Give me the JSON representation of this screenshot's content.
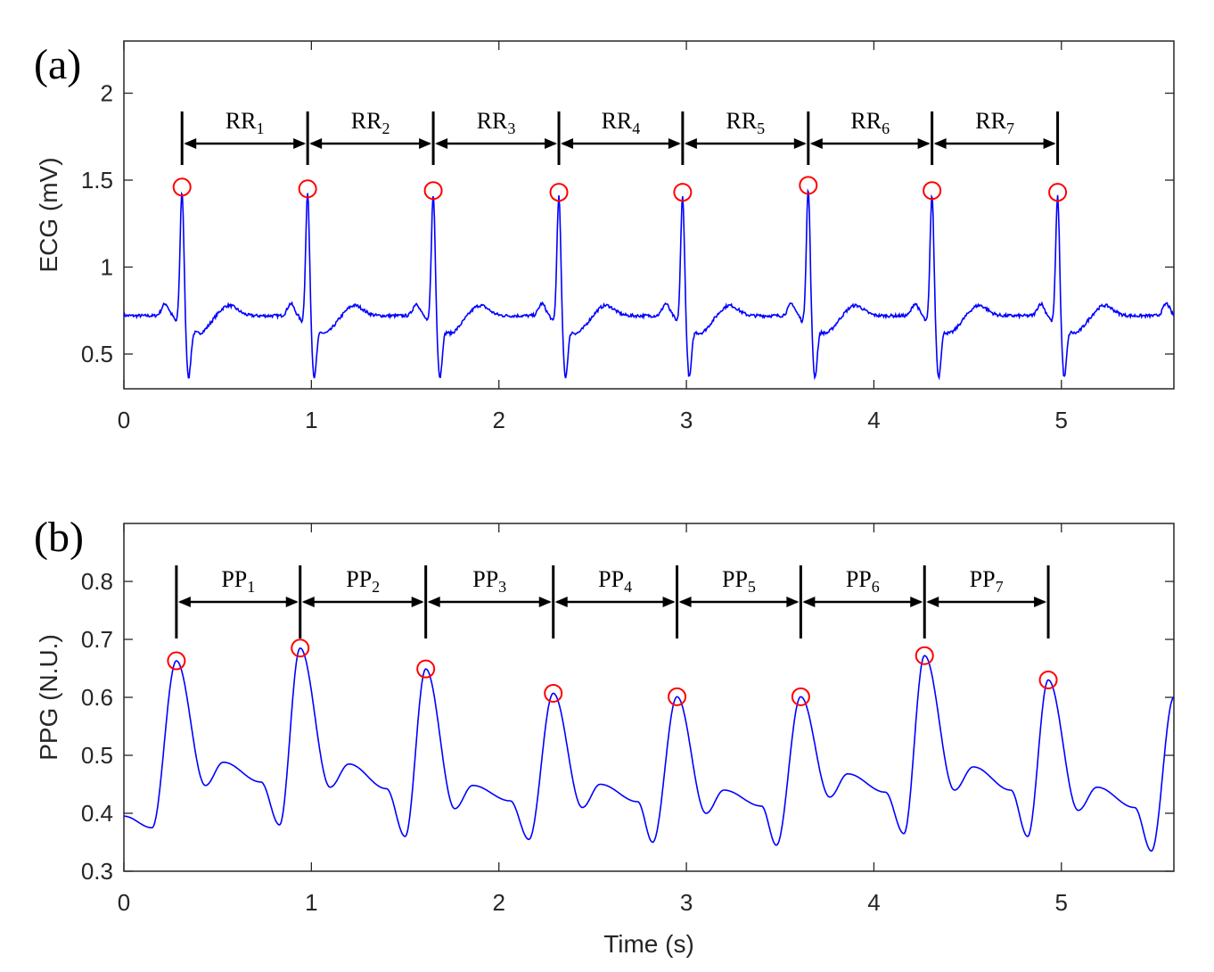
{
  "chart_data": [
    {
      "type": "line",
      "panel_label": "(a)",
      "ylabel": "ECG (mV)",
      "xlabel": "",
      "xlim": [
        0,
        5.6
      ],
      "ylim": [
        0.3,
        2.3
      ],
      "xticks": [
        "0",
        "1",
        "2",
        "3",
        "4",
        "5"
      ],
      "yticks": [
        "0.5",
        "1",
        "1.5",
        "2"
      ],
      "grid": false,
      "line_color": "#0000ff",
      "marker_color": "#ff0000",
      "baseline": 0.72,
      "peaks": [
        {
          "x": 0.31,
          "y": 1.46
        },
        {
          "x": 0.98,
          "y": 1.45
        },
        {
          "x": 1.65,
          "y": 1.44
        },
        {
          "x": 2.32,
          "y": 1.43
        },
        {
          "x": 2.98,
          "y": 1.43
        },
        {
          "x": 3.65,
          "y": 1.47
        },
        {
          "x": 4.31,
          "y": 1.44
        },
        {
          "x": 4.98,
          "y": 1.43
        }
      ],
      "intervals": [
        {
          "name": "RR",
          "sub": "1"
        },
        {
          "name": "RR",
          "sub": "2"
        },
        {
          "name": "RR",
          "sub": "3"
        },
        {
          "name": "RR",
          "sub": "4"
        },
        {
          "name": "RR",
          "sub": "5"
        },
        {
          "name": "RR",
          "sub": "6"
        },
        {
          "name": "RR",
          "sub": "7"
        }
      ]
    },
    {
      "type": "line",
      "panel_label": "(b)",
      "ylabel": "PPG (N.U.)",
      "xlabel": "Time (s)",
      "xlim": [
        0,
        5.6
      ],
      "ylim": [
        0.3,
        0.9
      ],
      "xticks": [
        "0",
        "1",
        "2",
        "3",
        "4",
        "5"
      ],
      "yticks": [
        "0.3",
        "0.4",
        "0.5",
        "0.6",
        "0.7",
        "0.8"
      ],
      "grid": false,
      "line_color": "#0000ff",
      "marker_color": "#ff0000",
      "peaks": [
        {
          "x": 0.28,
          "y": 0.663
        },
        {
          "x": 0.94,
          "y": 0.685
        },
        {
          "x": 1.61,
          "y": 0.649
        },
        {
          "x": 2.29,
          "y": 0.607
        },
        {
          "x": 2.95,
          "y": 0.601
        },
        {
          "x": 3.61,
          "y": 0.601
        },
        {
          "x": 4.27,
          "y": 0.672
        },
        {
          "x": 4.93,
          "y": 0.63
        }
      ],
      "troughs": [
        {
          "x": 0.15,
          "y": 0.375
        },
        {
          "x": 0.83,
          "y": 0.38
        },
        {
          "x": 1.5,
          "y": 0.36
        },
        {
          "x": 2.16,
          "y": 0.355
        },
        {
          "x": 2.82,
          "y": 0.35
        },
        {
          "x": 3.48,
          "y": 0.345
        },
        {
          "x": 4.16,
          "y": 0.365
        },
        {
          "x": 4.82,
          "y": 0.36
        },
        {
          "x": 5.48,
          "y": 0.335
        }
      ],
      "secondary_peaks": [
        {
          "x": 0.53,
          "y": 0.488
        },
        {
          "x": 1.2,
          "y": 0.485
        },
        {
          "x": 1.86,
          "y": 0.448
        },
        {
          "x": 2.54,
          "y": 0.45
        },
        {
          "x": 3.2,
          "y": 0.44
        },
        {
          "x": 3.86,
          "y": 0.468
        },
        {
          "x": 4.53,
          "y": 0.48
        },
        {
          "x": 5.19,
          "y": 0.445
        }
      ],
      "start": {
        "x": 0.0,
        "y": 0.395
      },
      "end": {
        "x": 5.6,
        "y": 0.6
      },
      "intervals": [
        {
          "name": "PP",
          "sub": "1"
        },
        {
          "name": "PP",
          "sub": "2"
        },
        {
          "name": "PP",
          "sub": "3"
        },
        {
          "name": "PP",
          "sub": "4"
        },
        {
          "name": "PP",
          "sub": "5"
        },
        {
          "name": "PP",
          "sub": "6"
        },
        {
          "name": "PP",
          "sub": "7"
        }
      ]
    }
  ]
}
